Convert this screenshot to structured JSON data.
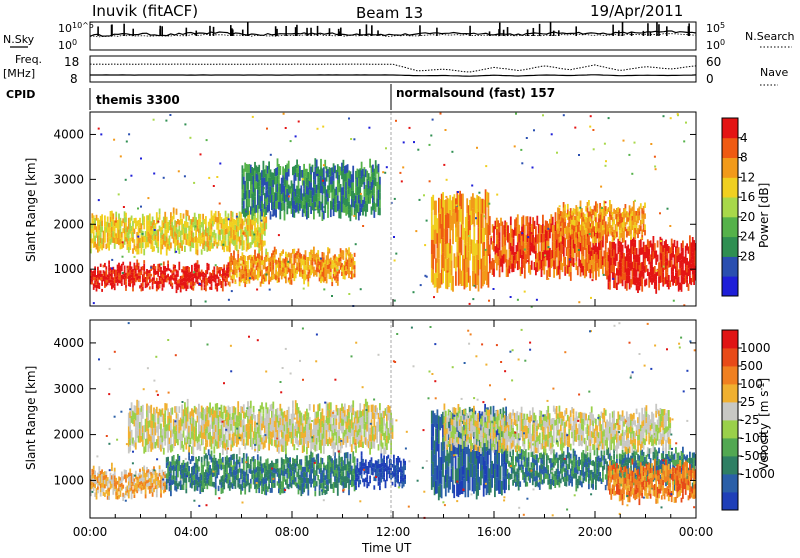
{
  "header": {
    "station": "Inuvik (fitACF)",
    "beam": "Beam 13",
    "date": "19/Apr/2011"
  },
  "side_labels": {
    "nsky": "N.Sky",
    "freq": "Freq.",
    "freq_unit": "[MHz]",
    "cpid": "CPID",
    "nsearch": "N.Search",
    "nave": "Nave"
  },
  "cpid_programs": [
    {
      "label": "themis 3300",
      "start": "00:00",
      "end": "12:00"
    },
    {
      "label": "normalsound (fast) 157",
      "start": "12:00",
      "end": "24:00"
    }
  ],
  "colorbars": {
    "power": {
      "label": "Power [dB]",
      "ticks": [
        "4",
        "8",
        "12",
        "16",
        "20",
        "24",
        "28"
      ],
      "colors": [
        "#1f1fd8",
        "#2a4fb0",
        "#2f8f52",
        "#55b24a",
        "#a8d84a",
        "#f0d020",
        "#f29a1a",
        "#ef5a12",
        "#e41414"
      ]
    },
    "velocity": {
      "label": "Velocity",
      "unit": "[m s",
      "unit_sup": "-1",
      "unit_close": "]",
      "ticks": [
        "1000",
        "500",
        "100",
        "25",
        "-25",
        "-100",
        "-500",
        "-1000"
      ],
      "colors": [
        "#1f3fb8",
        "#2a5fa8",
        "#2f7f64",
        "#52a852",
        "#9ad04a",
        "#c8c8c4",
        "#f0b030",
        "#f08020",
        "#e84a18",
        "#e01414"
      ]
    }
  },
  "chart_data": [
    {
      "type": "line",
      "title": "",
      "series": [
        {
          "name": "N.Sky",
          "values": [
            52,
            55,
            58,
            54,
            60,
            62,
            57,
            55,
            59,
            61,
            56,
            58,
            54,
            57,
            62,
            60,
            58,
            56,
            60,
            63,
            59,
            61,
            64,
            66,
            62
          ]
        },
        {
          "name": "N.Search",
          "values": [
            48,
            50,
            52,
            50,
            53,
            55,
            52,
            50,
            52,
            54,
            51,
            52,
            50,
            52,
            55,
            54,
            52,
            51,
            53,
            56,
            53,
            55,
            57,
            58,
            55
          ]
        }
      ],
      "x": [
        "00:00",
        "01:00",
        "02:00",
        "03:00",
        "04:00",
        "05:00",
        "06:00",
        "07:00",
        "08:00",
        "09:00",
        "10:00",
        "11:00",
        "12:00",
        "13:00",
        "14:00",
        "15:00",
        "16:00",
        "17:00",
        "18:00",
        "19:00",
        "20:00",
        "21:00",
        "22:00",
        "23:00",
        "24:00"
      ],
      "ylabel_left_ticks": [
        "10^0",
        "10^5"
      ],
      "ylabel_right_ticks": [
        "10^0",
        "10^5"
      ]
    },
    {
      "type": "line",
      "title": "",
      "series": [
        {
          "name": "Freq.",
          "values": [
            10.5,
            10.5,
            10.5,
            10.5,
            10.5,
            10.5,
            10.5,
            10.5,
            10.5,
            10.5,
            10.5,
            10.5,
            10.5,
            10.2,
            10.3,
            10.0,
            10.4,
            10.1,
            10.5,
            10.3,
            10.6,
            10.2,
            10.4,
            10.3,
            10.5
          ]
        },
        {
          "name": "Nave",
          "values": [
            42,
            42,
            42,
            42,
            42,
            42,
            42,
            42,
            42,
            42,
            42,
            42,
            42,
            25,
            30,
            22,
            34,
            26,
            38,
            28,
            40,
            26,
            36,
            30,
            38
          ]
        }
      ],
      "ylabel_left_ticks": [
        "8",
        "18"
      ],
      "ylabel_right_ticks": [
        "0",
        "60"
      ]
    },
    {
      "type": "heatmap",
      "name": "power",
      "title": "",
      "xlabel": "",
      "ylabel": "Slant Range [km]",
      "xlim": [
        0,
        24
      ],
      "ylim": [
        180,
        4500
      ],
      "yticks": [
        1000,
        2000,
        3000,
        4000
      ],
      "xticks": [
        "00:00",
        "04:00",
        "08:00",
        "12:00",
        "16:00",
        "20:00",
        "00:00"
      ],
      "colorbar": "Power [dB]",
      "bands": [
        {
          "t0": 0.0,
          "t1": 5.5,
          "r_low": 600,
          "r_high": 1050,
          "level": 8
        },
        {
          "t0": 5.5,
          "t1": 10.5,
          "r_low": 750,
          "r_high": 1350,
          "level": 6
        },
        {
          "t0": 0.0,
          "t1": 7.0,
          "r_low": 1450,
          "r_high": 2200,
          "level": 5
        },
        {
          "t0": 6.0,
          "t1": 11.5,
          "r_low": 2200,
          "r_high": 3300,
          "level": 2
        },
        {
          "t0": 13.5,
          "t1": 15.8,
          "r_low": 600,
          "r_high": 2600,
          "level": 6
        },
        {
          "t0": 15.8,
          "t1": 20.5,
          "r_low": 900,
          "r_high": 2100,
          "level": 7
        },
        {
          "t0": 20.5,
          "t1": 24.0,
          "r_low": 600,
          "r_high": 1600,
          "level": 8
        },
        {
          "t0": 18.5,
          "t1": 22.0,
          "r_low": 1700,
          "r_high": 2400,
          "level": 6
        }
      ]
    },
    {
      "type": "heatmap",
      "name": "velocity",
      "title": "",
      "xlabel": "Time UT",
      "ylabel": "Slant Range [km]",
      "xlim": [
        0,
        24
      ],
      "ylim": [
        180,
        4500
      ],
      "yticks": [
        1000,
        2000,
        3000,
        4000
      ],
      "xticks": [
        "00:00",
        "04:00",
        "08:00",
        "12:00",
        "16:00",
        "20:00",
        "00:00"
      ],
      "colorbar": "Velocity [m s-1]",
      "bands": [
        {
          "t0": 0.0,
          "t1": 3.0,
          "r_low": 700,
          "r_high": 1200,
          "level": 6
        },
        {
          "t0": 3.0,
          "t1": 10.5,
          "r_low": 800,
          "r_high": 1500,
          "level": 2
        },
        {
          "t0": 10.5,
          "t1": 12.5,
          "r_low": 900,
          "r_high": 1450,
          "level": 0
        },
        {
          "t0": 1.5,
          "t1": 12.0,
          "r_low": 1700,
          "r_high": 2600,
          "level": 5
        },
        {
          "t0": 13.5,
          "t1": 16.5,
          "r_low": 700,
          "r_high": 2500,
          "level": 1
        },
        {
          "t0": 16.5,
          "t1": 24.0,
          "r_low": 900,
          "r_high": 1600,
          "level": 2
        },
        {
          "t0": 20.5,
          "t1": 24.0,
          "r_low": 600,
          "r_high": 1300,
          "level": 7
        },
        {
          "t0": 14.0,
          "t1": 23.0,
          "r_low": 1700,
          "r_high": 2500,
          "level": 5
        }
      ]
    }
  ],
  "x_axis_label": "Time UT"
}
